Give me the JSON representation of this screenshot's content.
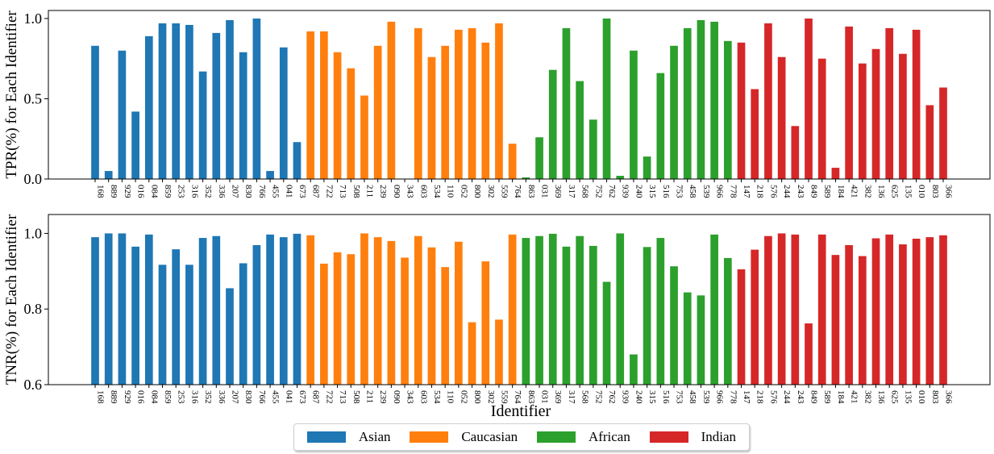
{
  "colors": {
    "Asian": "#1f77b4",
    "Caucasian": "#ff7f0e",
    "African": "#2ca02c",
    "Indian": "#d62728"
  },
  "legend": {
    "items": [
      "Asian",
      "Caucasian",
      "African",
      "Indian"
    ],
    "placement": "bottom-center"
  },
  "xlabel": "Identifier",
  "chart_data": [
    {
      "type": "bar",
      "ylabel": "TPR(%) for Each Identifier",
      "ylim": [
        0,
        1.05
      ],
      "yticks": [
        "0.0",
        "0.5",
        "1.0"
      ],
      "categories": [
        "168",
        "889",
        "929",
        "016",
        "084",
        "859",
        "253",
        "316",
        "352",
        "336",
        "207",
        "830",
        "766",
        "455",
        "041",
        "673",
        "687",
        "722",
        "713",
        "508",
        "211",
        "239",
        "090",
        "343",
        "603",
        "534",
        "110",
        "052",
        "800",
        "302",
        "559",
        "764",
        "863",
        "031",
        "369",
        "317",
        "568",
        "752",
        "762",
        "939",
        "240",
        "315",
        "516",
        "753",
        "458",
        "539",
        "966",
        "778",
        "147",
        "218",
        "576",
        "244",
        "243",
        "849",
        "589",
        "184",
        "421",
        "382",
        "136",
        "625",
        "135",
        "010",
        "803",
        "366"
      ],
      "groups": [
        "Asian",
        "Asian",
        "Asian",
        "Asian",
        "Asian",
        "Asian",
        "Asian",
        "Asian",
        "Asian",
        "Asian",
        "Asian",
        "Asian",
        "Asian",
        "Asian",
        "Asian",
        "Asian",
        "Caucasian",
        "Caucasian",
        "Caucasian",
        "Caucasian",
        "Caucasian",
        "Caucasian",
        "Caucasian",
        "Caucasian",
        "Caucasian",
        "Caucasian",
        "Caucasian",
        "Caucasian",
        "Caucasian",
        "Caucasian",
        "Caucasian",
        "Caucasian",
        "African",
        "African",
        "African",
        "African",
        "African",
        "African",
        "African",
        "African",
        "African",
        "African",
        "African",
        "African",
        "African",
        "African",
        "African",
        "African",
        "Indian",
        "Indian",
        "Indian",
        "Indian",
        "Indian",
        "Indian",
        "Indian",
        "Indian",
        "Indian",
        "Indian",
        "Indian",
        "Indian",
        "Indian",
        "Indian",
        "Indian",
        "Indian"
      ],
      "values": [
        0.83,
        0.05,
        0.8,
        0.42,
        0.89,
        0.97,
        0.97,
        0.96,
        0.67,
        0.91,
        0.99,
        0.79,
        1.0,
        0.05,
        0.82,
        0.23,
        0.92,
        0.92,
        0.79,
        0.69,
        0.52,
        0.83,
        0.98,
        0.0,
        0.94,
        0.76,
        0.83,
        0.93,
        0.94,
        0.85,
        0.97,
        0.22,
        0.01,
        0.26,
        0.68,
        0.94,
        0.61,
        0.37,
        1.0,
        0.02,
        0.8,
        0.14,
        0.66,
        0.83,
        0.94,
        0.99,
        0.98,
        0.86,
        0.85,
        0.56,
        0.97,
        0.76,
        0.33,
        1.0,
        0.75,
        0.07,
        0.95,
        0.72,
        0.81,
        0.94,
        0.78,
        0.93,
        0.46,
        0.57
      ],
      "grid": false
    },
    {
      "type": "bar",
      "ylabel": "TNR(%) for Each Identifier",
      "ylim": [
        0.6,
        1.05
      ],
      "yticks": [
        "0.6",
        "0.8",
        "1.0"
      ],
      "categories": [
        "168",
        "889",
        "929",
        "016",
        "084",
        "859",
        "253",
        "316",
        "352",
        "336",
        "207",
        "830",
        "766",
        "455",
        "041",
        "673",
        "687",
        "722",
        "713",
        "508",
        "211",
        "239",
        "090",
        "343",
        "603",
        "534",
        "110",
        "052",
        "800",
        "302",
        "559",
        "764",
        "863",
        "031",
        "369",
        "317",
        "568",
        "752",
        "762",
        "939",
        "240",
        "315",
        "516",
        "753",
        "458",
        "539",
        "966",
        "778",
        "147",
        "218",
        "576",
        "244",
        "243",
        "849",
        "589",
        "184",
        "421",
        "382",
        "136",
        "625",
        "135",
        "010",
        "803",
        "366"
      ],
      "groups": [
        "Asian",
        "Asian",
        "Asian",
        "Asian",
        "Asian",
        "Asian",
        "Asian",
        "Asian",
        "Asian",
        "Asian",
        "Asian",
        "Asian",
        "Asian",
        "Asian",
        "Asian",
        "Asian",
        "Caucasian",
        "Caucasian",
        "Caucasian",
        "Caucasian",
        "Caucasian",
        "Caucasian",
        "Caucasian",
        "Caucasian",
        "Caucasian",
        "Caucasian",
        "Caucasian",
        "Caucasian",
        "Caucasian",
        "Caucasian",
        "Caucasian",
        "Caucasian",
        "African",
        "African",
        "African",
        "African",
        "African",
        "African",
        "African",
        "African",
        "African",
        "African",
        "African",
        "African",
        "African",
        "African",
        "African",
        "African",
        "Indian",
        "Indian",
        "Indian",
        "Indian",
        "Indian",
        "Indian",
        "Indian",
        "Indian",
        "Indian",
        "Indian",
        "Indian",
        "Indian",
        "Indian",
        "Indian",
        "Indian",
        "Indian"
      ],
      "values": [
        0.99,
        1.0,
        1.0,
        0.965,
        0.997,
        0.917,
        0.958,
        0.917,
        0.988,
        0.993,
        0.855,
        0.921,
        0.969,
        0.997,
        0.99,
        0.999,
        0.995,
        0.92,
        0.95,
        0.945,
        1.0,
        0.99,
        0.98,
        0.936,
        0.993,
        0.963,
        0.911,
        0.978,
        0.765,
        0.926,
        0.772,
        0.997,
        0.988,
        0.993,
        0.999,
        0.965,
        0.993,
        0.967,
        0.872,
        1.0,
        0.68,
        0.964,
        0.988,
        0.913,
        0.844,
        0.836,
        0.997,
        0.935,
        0.905,
        0.957,
        0.993,
        1.0,
        0.997,
        0.762,
        0.997,
        0.943,
        0.969,
        0.94,
        0.987,
        0.997,
        0.971,
        0.986,
        0.99,
        0.995
      ],
      "grid": false
    }
  ]
}
